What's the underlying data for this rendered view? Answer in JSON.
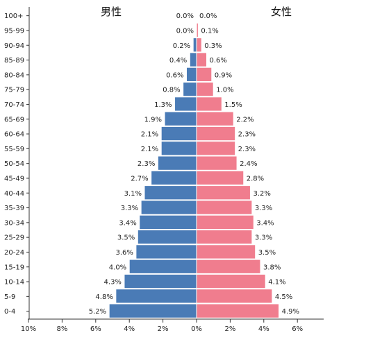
{
  "chart_data": {
    "type": "bar",
    "title_male": "男性",
    "title_female": "女性",
    "categories": [
      "100+",
      "95-99",
      "90-94",
      "85-89",
      "80-84",
      "75-79",
      "70-74",
      "65-69",
      "60-64",
      "55-59",
      "50-54",
      "45-49",
      "40-44",
      "35-39",
      "30-34",
      "25-29",
      "20-24",
      "15-19",
      "10-14",
      "5-9",
      "0-4"
    ],
    "series": [
      {
        "name": "男性",
        "values": [
          0.0,
          0.0,
          0.2,
          0.4,
          0.6,
          0.8,
          1.3,
          1.9,
          2.1,
          2.1,
          2.3,
          2.7,
          3.1,
          3.3,
          3.4,
          3.5,
          3.6,
          4.0,
          4.3,
          4.8,
          5.2
        ],
        "color": "#4a7bb6"
      },
      {
        "name": "女性",
        "values": [
          0.0,
          0.1,
          0.3,
          0.6,
          0.9,
          1.0,
          1.5,
          2.2,
          2.3,
          2.3,
          2.4,
          2.8,
          3.2,
          3.3,
          3.4,
          3.3,
          3.5,
          3.8,
          4.1,
          4.5,
          4.9
        ],
        "color": "#f07d8e"
      }
    ],
    "x_ticks": [
      "10%",
      "8%",
      "6%",
      "4%",
      "2%",
      "0%",
      "2%",
      "4%",
      "6%"
    ],
    "xlim": [
      -10,
      6
    ],
    "value_suffix": "%"
  }
}
